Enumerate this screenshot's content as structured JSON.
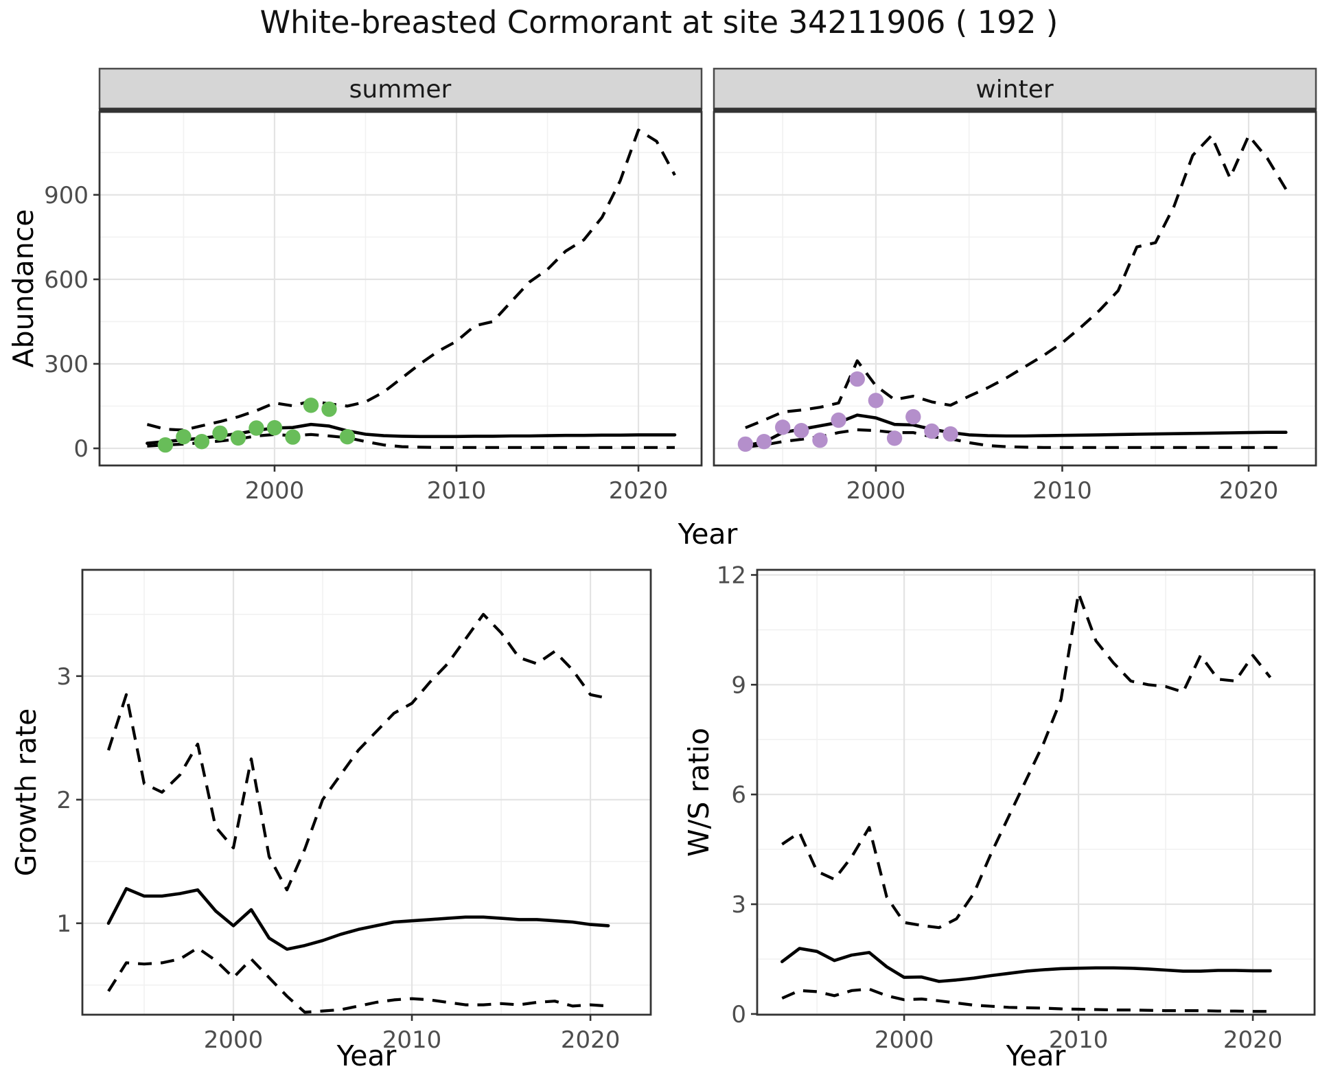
{
  "title": "White-breasted Cormorant at site 34211906 ( 192 )",
  "labels": {
    "x_title": "Year",
    "y_abundance": "Abundance",
    "y_growth": "Growth rate",
    "y_ws": "W/S ratio"
  },
  "colors": {
    "summer_points": "#68BD59",
    "winter_points": "#B48FCB",
    "line": "#000000",
    "strip_bg": "#d6d6d6",
    "grid_major": "#e3e3e3",
    "grid_minor": "#f1f1f1",
    "axis_text": "#4d4d4d",
    "panel_border": "#333333"
  },
  "chart_data": [
    {
      "id": "abundance-summer",
      "type": "line",
      "facet_label": "summer",
      "xlabel": "Year",
      "ylabel": "Abundance",
      "xlim": [
        1990.38,
        2023.47
      ],
      "ylim": [
        -60.8,
        1194.4
      ],
      "x_ticks": [
        2000,
        2010,
        2020
      ],
      "x_minor": [
        1995,
        2005,
        2015
      ],
      "y_ticks": [
        0,
        300,
        600,
        900
      ],
      "y_minor": [
        150,
        450,
        750,
        1050
      ],
      "grid": true,
      "legend": "none",
      "series": [
        {
          "name": "median",
          "linetype": "solid",
          "x": [
            1993,
            1994,
            1995,
            1996,
            1997,
            1998,
            1999,
            2000,
            2001,
            2002,
            2003,
            2004,
            2005,
            2006,
            2007,
            2008,
            2009,
            2010,
            2011,
            2012,
            2013,
            2014,
            2015,
            2016,
            2017,
            2018,
            2019,
            2020,
            2021,
            2022
          ],
          "y": [
            18,
            24,
            30,
            36,
            44,
            52,
            64,
            72,
            74,
            85,
            79,
            62,
            50,
            45,
            43,
            42,
            42,
            42,
            43,
            43,
            44,
            44,
            45,
            46,
            46,
            47,
            47,
            48,
            48,
            48
          ]
        },
        {
          "name": "lower-ci",
          "linetype": "dashed",
          "x": [
            1993,
            1994,
            1995,
            1996,
            1997,
            1998,
            1999,
            2000,
            2001,
            2002,
            2003,
            2004,
            2005,
            2006,
            2007,
            2008,
            2009,
            2010,
            2011,
            2012,
            2013,
            2014,
            2015,
            2016,
            2017,
            2018,
            2019,
            2020,
            2021,
            2022
          ],
          "y": [
            8,
            12,
            15,
            20,
            26,
            33,
            44,
            49,
            45,
            49,
            44,
            38,
            24,
            12,
            6,
            4,
            3,
            3,
            3,
            3,
            3,
            3,
            3,
            3,
            3,
            3,
            3,
            3,
            3,
            3
          ]
        },
        {
          "name": "upper-ci",
          "linetype": "dashed",
          "x": [
            1993,
            1994,
            1995,
            1996,
            1997,
            1998,
            1999,
            2000,
            2001,
            2002,
            2003,
            2004,
            2005,
            2006,
            2007,
            2008,
            2009,
            2010,
            2011,
            2012,
            2013,
            2014,
            2015,
            2016,
            2017,
            2018,
            2019,
            2020,
            2021,
            2022
          ],
          "y": [
            85,
            68,
            65,
            80,
            95,
            112,
            134,
            161,
            151,
            168,
            158,
            150,
            165,
            200,
            250,
            300,
            345,
            380,
            435,
            450,
            520,
            590,
            635,
            700,
            740,
            820,
            950,
            1130,
            1090,
            970
          ]
        }
      ],
      "points": {
        "name": "observed-counts",
        "color_key": "summer_points",
        "x": [
          1994,
          1995,
          1996,
          1997,
          1998,
          1999,
          2000,
          2001,
          2002,
          2003,
          2004
        ],
        "y": [
          12,
          41,
          24,
          54,
          37,
          72,
          73,
          40,
          153,
          139,
          41
        ]
      }
    },
    {
      "id": "abundance-winter",
      "type": "line",
      "facet_label": "winter",
      "xlabel": "Year",
      "ylabel": "Abundance",
      "xlim": [
        1991.31,
        2023.61
      ],
      "ylim": [
        -60.8,
        1194.4
      ],
      "x_ticks": [
        2000,
        2010,
        2020
      ],
      "x_minor": [
        1995,
        2005,
        2015
      ],
      "y_ticks": [
        0,
        300,
        600,
        900
      ],
      "y_minor": [
        150,
        450,
        750,
        1050
      ],
      "grid": true,
      "legend": "none",
      "series": [
        {
          "name": "median",
          "linetype": "solid",
          "x": [
            1993,
            1994,
            1995,
            1996,
            1997,
            1998,
            1999,
            2000,
            2001,
            2002,
            2003,
            2004,
            2005,
            2006,
            2007,
            2008,
            2009,
            2010,
            2011,
            2012,
            2013,
            2014,
            2015,
            2016,
            2017,
            2018,
            2019,
            2020,
            2021,
            2022
          ],
          "y": [
            10,
            22,
            56,
            68,
            80,
            92,
            118,
            108,
            85,
            83,
            68,
            56,
            48,
            45,
            44,
            44,
            45,
            46,
            47,
            48,
            49,
            50,
            51,
            52,
            53,
            54,
            55,
            56,
            57,
            57
          ]
        },
        {
          "name": "lower-ci",
          "linetype": "dashed",
          "x": [
            1993,
            1994,
            1995,
            1996,
            1997,
            1998,
            1999,
            2000,
            2001,
            2002,
            2003,
            2004,
            2005,
            2006,
            2007,
            2008,
            2009,
            2010,
            2011,
            2012,
            2013,
            2014,
            2015,
            2016,
            2017,
            2018,
            2019,
            2020,
            2021,
            2022
          ],
          "y": [
            5,
            12,
            24,
            32,
            41,
            56,
            66,
            63,
            56,
            56,
            41,
            34,
            20,
            10,
            6,
            4,
            3,
            3,
            3,
            3,
            3,
            3,
            3,
            3,
            3,
            3,
            3,
            3,
            3,
            3
          ]
        },
        {
          "name": "upper-ci",
          "linetype": "dashed",
          "x": [
            1993,
            1994,
            1995,
            1996,
            1997,
            1998,
            1999,
            2000,
            2001,
            2002,
            2003,
            2004,
            2005,
            2006,
            2007,
            2008,
            2009,
            2010,
            2011,
            2012,
            2013,
            2014,
            2015,
            2016,
            2017,
            2018,
            2019,
            2020,
            2021,
            2022
          ],
          "y": [
            73,
            100,
            129,
            136,
            146,
            161,
            311,
            222,
            173,
            185,
            165,
            153,
            185,
            215,
            250,
            290,
            330,
            375,
            430,
            490,
            560,
            715,
            730,
            860,
            1040,
            1110,
            960,
            1110,
            1030,
            920
          ]
        }
      ],
      "points": {
        "name": "observed-counts",
        "color_key": "winter_points",
        "x": [
          1993,
          1994,
          1995,
          1996,
          1997,
          1998,
          1999,
          2000,
          2001,
          2002,
          2003,
          2004
        ],
        "y": [
          15,
          24,
          75,
          63,
          29,
          100,
          246,
          170,
          36,
          112,
          61,
          51
        ]
      }
    },
    {
      "id": "growth-rate",
      "type": "line",
      "facet_label": "",
      "xlabel": "Year",
      "ylabel": "Growth rate",
      "xlim": [
        1991.54,
        2023.38
      ],
      "ylim": [
        0.26,
        3.86
      ],
      "x_ticks": [
        2000,
        2010,
        2020
      ],
      "x_minor": [
        1995,
        2005,
        2015
      ],
      "y_ticks": [
        1,
        2,
        3
      ],
      "y_minor": [
        0.5,
        1.5,
        2.5,
        3.5
      ],
      "grid": true,
      "legend": "none",
      "series": [
        {
          "name": "median",
          "linetype": "solid",
          "x": [
            1993,
            1994,
            1995,
            1996,
            1997,
            1998,
            1999,
            2000,
            2001,
            2002,
            2003,
            2004,
            2005,
            2006,
            2007,
            2008,
            2009,
            2010,
            2011,
            2012,
            2013,
            2014,
            2015,
            2016,
            2017,
            2018,
            2019,
            2020,
            2021
          ],
          "y": [
            1.0,
            1.28,
            1.22,
            1.22,
            1.24,
            1.27,
            1.1,
            0.98,
            1.11,
            0.88,
            0.79,
            0.82,
            0.86,
            0.91,
            0.95,
            0.98,
            1.01,
            1.02,
            1.03,
            1.04,
            1.05,
            1.05,
            1.04,
            1.03,
            1.03,
            1.02,
            1.01,
            0.99,
            0.98
          ]
        },
        {
          "name": "lower-ci",
          "linetype": "dashed",
          "x": [
            1993,
            1994,
            1995,
            1996,
            1997,
            1998,
            1999,
            2000,
            2001,
            2002,
            2003,
            2004,
            2005,
            2006,
            2007,
            2008,
            2009,
            2010,
            2011,
            2012,
            2013,
            2014,
            2015,
            2016,
            2017,
            2018,
            2019,
            2020,
            2021
          ],
          "y": [
            0.45,
            0.68,
            0.67,
            0.68,
            0.71,
            0.8,
            0.7,
            0.56,
            0.71,
            0.56,
            0.41,
            0.28,
            0.29,
            0.3,
            0.33,
            0.36,
            0.38,
            0.39,
            0.38,
            0.36,
            0.34,
            0.34,
            0.35,
            0.34,
            0.36,
            0.37,
            0.33,
            0.34,
            0.33
          ]
        },
        {
          "name": "upper-ci",
          "linetype": "dashed",
          "x": [
            1993,
            1994,
            1995,
            1996,
            1997,
            1998,
            1999,
            2000,
            2001,
            2002,
            2003,
            2004,
            2005,
            2006,
            2007,
            2008,
            2009,
            2010,
            2011,
            2012,
            2013,
            2014,
            2015,
            2016,
            2017,
            2018,
            2019,
            2020,
            2021
          ],
          "y": [
            2.4,
            2.85,
            2.13,
            2.06,
            2.2,
            2.45,
            1.78,
            1.61,
            2.33,
            1.54,
            1.27,
            1.6,
            2.0,
            2.2,
            2.4,
            2.55,
            2.7,
            2.78,
            2.95,
            3.1,
            3.3,
            3.5,
            3.35,
            3.15,
            3.1,
            3.2,
            3.05,
            2.85,
            2.82
          ]
        }
      ],
      "points": null
    },
    {
      "id": "ws-ratio",
      "type": "line",
      "facet_label": "",
      "xlabel": "Year",
      "ylabel": "W/S ratio",
      "xlim": [
        1991.57,
        2023.54
      ],
      "ylim": [
        -0.02,
        12.14
      ],
      "x_ticks": [
        2000,
        2010,
        2020
      ],
      "x_minor": [
        1995,
        2005,
        2015
      ],
      "y_ticks": [
        0,
        3,
        6,
        9,
        12
      ],
      "y_minor": [
        1.5,
        4.5,
        7.5,
        10.5
      ],
      "grid": true,
      "legend": "none",
      "series": [
        {
          "name": "median",
          "linetype": "solid",
          "x": [
            1993,
            1994,
            1995,
            1996,
            1997,
            1998,
            1999,
            2000,
            2001,
            2002,
            2003,
            2004,
            2005,
            2006,
            2007,
            2008,
            2009,
            2010,
            2011,
            2012,
            2013,
            2014,
            2015,
            2016,
            2017,
            2018,
            2019,
            2020,
            2021
          ],
          "y": [
            1.43,
            1.79,
            1.71,
            1.46,
            1.61,
            1.68,
            1.29,
            1.0,
            1.01,
            0.89,
            0.93,
            0.98,
            1.05,
            1.11,
            1.17,
            1.21,
            1.24,
            1.25,
            1.26,
            1.26,
            1.25,
            1.23,
            1.2,
            1.17,
            1.17,
            1.19,
            1.19,
            1.18,
            1.18
          ]
        },
        {
          "name": "lower-ci",
          "linetype": "dashed",
          "x": [
            1993,
            1994,
            1995,
            1996,
            1997,
            1998,
            1999,
            2000,
            2001,
            2002,
            2003,
            2004,
            2005,
            2006,
            2007,
            2008,
            2009,
            2010,
            2011,
            2012,
            2013,
            2014,
            2015,
            2016,
            2017,
            2018,
            2019,
            2020,
            2021
          ],
          "y": [
            0.43,
            0.64,
            0.61,
            0.5,
            0.64,
            0.68,
            0.5,
            0.39,
            0.41,
            0.36,
            0.3,
            0.24,
            0.21,
            0.18,
            0.17,
            0.16,
            0.14,
            0.13,
            0.12,
            0.11,
            0.11,
            0.1,
            0.09,
            0.09,
            0.09,
            0.08,
            0.08,
            0.07,
            0.07
          ]
        },
        {
          "name": "upper-ci",
          "linetype": "dashed",
          "x": [
            1993,
            1994,
            1995,
            1996,
            1997,
            1998,
            1999,
            2000,
            2001,
            2002,
            2003,
            2004,
            2005,
            2006,
            2007,
            2008,
            2009,
            2010,
            2011,
            2012,
            2013,
            2014,
            2015,
            2016,
            2017,
            2018,
            2019,
            2020,
            2021
          ],
          "y": [
            4.64,
            4.96,
            3.9,
            3.68,
            4.3,
            5.1,
            3.2,
            2.5,
            2.42,
            2.36,
            2.6,
            3.3,
            4.4,
            5.4,
            6.4,
            7.4,
            8.6,
            11.5,
            10.2,
            9.6,
            9.1,
            9.0,
            8.95,
            8.8,
            9.8,
            9.15,
            9.1,
            9.8,
            9.2
          ]
        }
      ],
      "points": null
    }
  ]
}
